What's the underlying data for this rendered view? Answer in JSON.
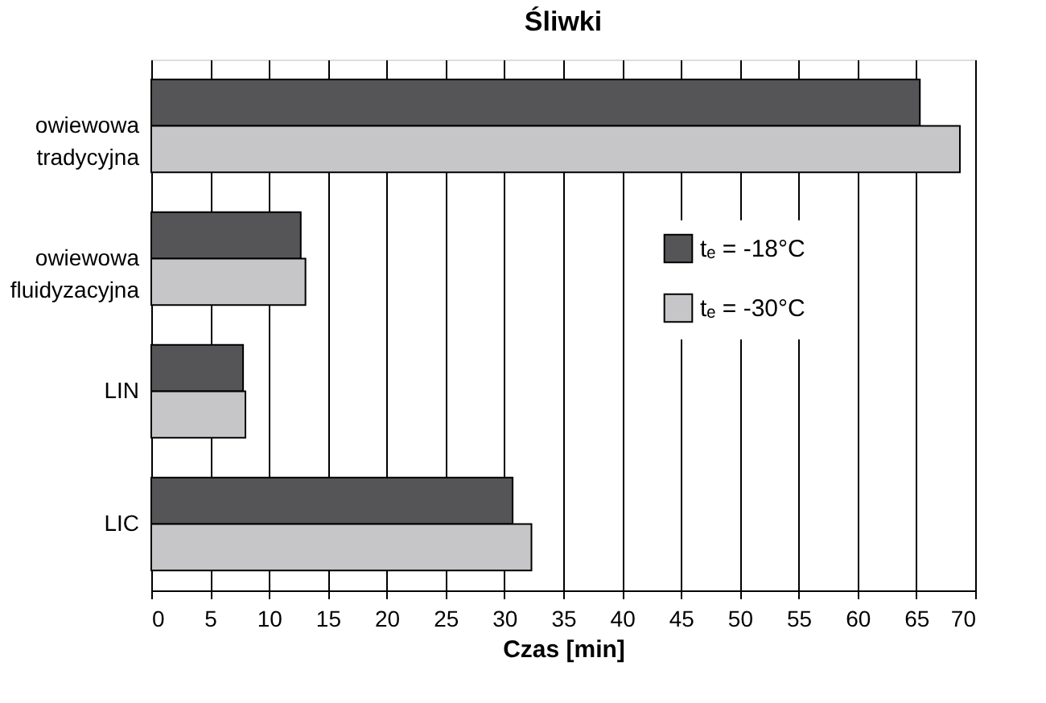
{
  "chart_data": {
    "type": "bar",
    "orientation": "horizontal",
    "title": "Śliwki",
    "xlabel": "Czas [min]",
    "categories": [
      "owiewowa tradycyjna",
      "owiewowa fluidyzacyjna",
      "LIN",
      "LIC"
    ],
    "series": [
      {
        "name": "tₑ = -18°C",
        "color": "#555557",
        "values": [
          65.3,
          12.7,
          7.8,
          30.7
        ]
      },
      {
        "name": "tₑ = -30°C",
        "color": "#c6c6c8",
        "values": [
          68.7,
          13.1,
          8.0,
          32.3
        ]
      }
    ],
    "xlim": [
      0,
      70
    ],
    "xticks": [
      0,
      5,
      10,
      15,
      20,
      25,
      30,
      35,
      40,
      45,
      50,
      55,
      60,
      65,
      70
    ],
    "grid": "x",
    "legend": "right"
  }
}
